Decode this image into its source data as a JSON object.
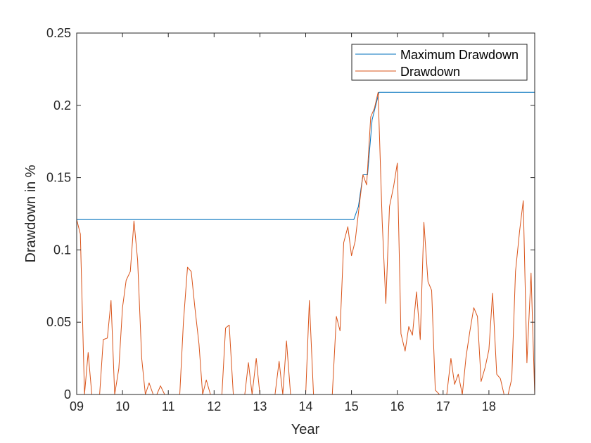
{
  "chart_data": {
    "type": "line",
    "title": "",
    "xlabel": "Year",
    "ylabel": "Drawdown in %",
    "xlim": [
      9,
      19
    ],
    "ylim": [
      0,
      0.25
    ],
    "x_ticks": [
      9,
      10,
      11,
      12,
      13,
      14,
      15,
      16,
      17,
      18
    ],
    "x_tick_labels": [
      "09",
      "10",
      "11",
      "12",
      "13",
      "14",
      "15",
      "16",
      "17",
      "18"
    ],
    "y_ticks": [
      0,
      0.05,
      0.1,
      0.15,
      0.2,
      0.25
    ],
    "y_tick_labels": [
      "0",
      "0.05",
      "0.1",
      "0.15",
      "0.2",
      "0.25"
    ],
    "legend_position": "top-right",
    "series": [
      {
        "name": "Maximum Drawdown",
        "color": "#0072BD",
        "points": [
          [
            9.0,
            0.121
          ],
          [
            15.05,
            0.121
          ],
          [
            15.15,
            0.13
          ],
          [
            15.25,
            0.152
          ],
          [
            15.35,
            0.152
          ],
          [
            15.45,
            0.19
          ],
          [
            15.6,
            0.209
          ],
          [
            19.0,
            0.209
          ]
        ]
      },
      {
        "name": "Drawdown",
        "color": "#D95319",
        "points": [
          [
            9.0,
            0.121
          ],
          [
            9.08,
            0.111
          ],
          [
            9.17,
            0.0
          ],
          [
            9.25,
            0.029
          ],
          [
            9.33,
            0.0
          ],
          [
            9.42,
            0.0
          ],
          [
            9.5,
            0.0
          ],
          [
            9.58,
            0.038
          ],
          [
            9.67,
            0.039
          ],
          [
            9.75,
            0.065
          ],
          [
            9.83,
            0.0
          ],
          [
            9.92,
            0.018
          ],
          [
            10.0,
            0.06
          ],
          [
            10.08,
            0.079
          ],
          [
            10.17,
            0.085
          ],
          [
            10.25,
            0.12
          ],
          [
            10.33,
            0.093
          ],
          [
            10.42,
            0.025
          ],
          [
            10.5,
            0.0
          ],
          [
            10.58,
            0.008
          ],
          [
            10.67,
            0.0
          ],
          [
            10.75,
            0.0
          ],
          [
            10.83,
            0.006
          ],
          [
            10.92,
            0.0
          ],
          [
            11.0,
            0.0
          ],
          [
            11.25,
            0.0
          ],
          [
            11.33,
            0.05
          ],
          [
            11.42,
            0.088
          ],
          [
            11.5,
            0.085
          ],
          [
            11.58,
            0.06
          ],
          [
            11.67,
            0.035
          ],
          [
            11.75,
            0.0
          ],
          [
            11.83,
            0.01
          ],
          [
            11.92,
            0.0
          ],
          [
            12.0,
            0.0
          ],
          [
            12.17,
            0.0
          ],
          [
            12.25,
            0.046
          ],
          [
            12.33,
            0.048
          ],
          [
            12.42,
            0.0
          ],
          [
            12.5,
            0.0
          ],
          [
            12.58,
            0.0
          ],
          [
            12.67,
            0.0
          ],
          [
            12.75,
            0.022
          ],
          [
            12.83,
            0.0
          ],
          [
            12.92,
            0.025
          ],
          [
            13.0,
            0.0
          ],
          [
            13.08,
            0.0
          ],
          [
            13.33,
            0.0
          ],
          [
            13.42,
            0.023
          ],
          [
            13.5,
            0.0
          ],
          [
            13.58,
            0.037
          ],
          [
            13.67,
            0.0
          ],
          [
            13.75,
            0.0
          ],
          [
            14.0,
            0.0
          ],
          [
            14.08,
            0.065
          ],
          [
            14.17,
            0.0
          ],
          [
            14.25,
            0.0
          ],
          [
            14.5,
            0.0
          ],
          [
            14.58,
            0.0
          ],
          [
            14.67,
            0.054
          ],
          [
            14.75,
            0.044
          ],
          [
            14.83,
            0.105
          ],
          [
            14.92,
            0.116
          ],
          [
            15.0,
            0.096
          ],
          [
            15.08,
            0.106
          ],
          [
            15.17,
            0.131
          ],
          [
            15.25,
            0.152
          ],
          [
            15.33,
            0.145
          ],
          [
            15.42,
            0.192
          ],
          [
            15.5,
            0.198
          ],
          [
            15.58,
            0.209
          ],
          [
            15.67,
            0.12
          ],
          [
            15.75,
            0.063
          ],
          [
            15.83,
            0.13
          ],
          [
            15.92,
            0.144
          ],
          [
            16.0,
            0.16
          ],
          [
            16.08,
            0.042
          ],
          [
            16.17,
            0.03
          ],
          [
            16.25,
            0.047
          ],
          [
            16.33,
            0.041
          ],
          [
            16.42,
            0.071
          ],
          [
            16.5,
            0.038
          ],
          [
            16.58,
            0.119
          ],
          [
            16.67,
            0.078
          ],
          [
            16.75,
            0.072
          ],
          [
            16.83,
            0.003
          ],
          [
            16.92,
            0.0
          ],
          [
            17.0,
            0.0
          ],
          [
            17.08,
            0.0
          ],
          [
            17.17,
            0.025
          ],
          [
            17.25,
            0.007
          ],
          [
            17.33,
            0.014
          ],
          [
            17.42,
            0.0
          ],
          [
            17.5,
            0.026
          ],
          [
            17.58,
            0.043
          ],
          [
            17.67,
            0.06
          ],
          [
            17.75,
            0.054
          ],
          [
            17.83,
            0.009
          ],
          [
            17.92,
            0.019
          ],
          [
            18.0,
            0.031
          ],
          [
            18.08,
            0.07
          ],
          [
            18.17,
            0.014
          ],
          [
            18.25,
            0.011
          ],
          [
            18.33,
            0.0
          ],
          [
            18.42,
            0.0
          ],
          [
            18.5,
            0.011
          ],
          [
            18.58,
            0.085
          ],
          [
            18.67,
            0.113
          ],
          [
            18.75,
            0.134
          ],
          [
            18.83,
            0.022
          ],
          [
            18.92,
            0.084
          ],
          [
            19.0,
            0.0
          ]
        ]
      }
    ]
  }
}
